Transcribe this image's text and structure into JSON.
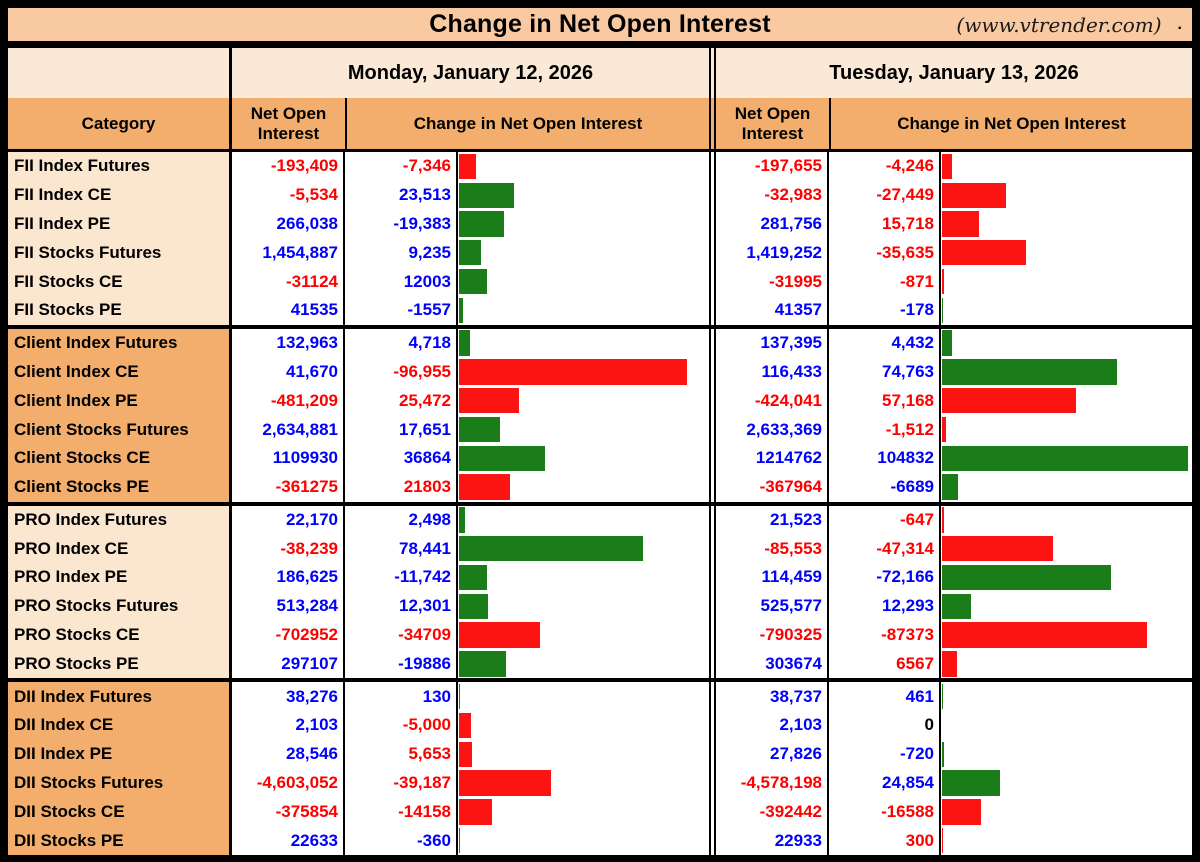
{
  "title": {
    "text": "Change in Net Open Interest",
    "source": "(www.vtrender.com)",
    "dot": "."
  },
  "days": [
    "Monday, January 12, 2026",
    "Tuesday, January 13, 2026"
  ],
  "columns": {
    "category": "Category",
    "noi": "Net Open Interest",
    "change": "Change in Net Open Interest"
  },
  "bar_scale": {
    "max_abs": 104832,
    "max_pct": 98
  },
  "colors": {
    "title_band": "#f9c9a1",
    "day_header_bg": "#fbe9d7",
    "column_header_bg": "#f3ae6d",
    "category_light": "#fbe6cf",
    "category_dark": "#f3ae6d",
    "cell_bg": "#ffffff",
    "positive_text": "#0000ff",
    "negative_text": "#ff0000",
    "zero_text": "#000000",
    "bar_green": "#1a7d1a",
    "bar_red": "#fb1412",
    "border": "#000000"
  },
  "groups": [
    {
      "name": "FII",
      "shade": "light",
      "rows": [
        {
          "category": "FII Index Futures",
          "cols": [
            {
              "noi": "-193,409",
              "noi_color": "red",
              "chg": "-7,346",
              "chg_color": "red",
              "chg_val": -7346,
              "bar": "red"
            },
            {
              "noi": "-197,655",
              "noi_color": "red",
              "chg": "-4,246",
              "chg_color": "red",
              "chg_val": -4246,
              "bar": "red"
            }
          ]
        },
        {
          "category": "FII Index CE",
          "cols": [
            {
              "noi": "-5,534",
              "noi_color": "red",
              "chg": "23,513",
              "chg_color": "blue",
              "chg_val": 23513,
              "bar": "green"
            },
            {
              "noi": "-32,983",
              "noi_color": "red",
              "chg": "-27,449",
              "chg_color": "red",
              "chg_val": -27449,
              "bar": "red"
            }
          ]
        },
        {
          "category": "FII Index PE",
          "cols": [
            {
              "noi": "266,038",
              "noi_color": "blue",
              "chg": "-19,383",
              "chg_color": "blue",
              "chg_val": -19383,
              "bar": "green"
            },
            {
              "noi": "281,756",
              "noi_color": "blue",
              "chg": "15,718",
              "chg_color": "red",
              "chg_val": 15718,
              "bar": "red"
            }
          ]
        },
        {
          "category": "FII Stocks Futures",
          "cols": [
            {
              "noi": "1,454,887",
              "noi_color": "blue",
              "chg": "9,235",
              "chg_color": "blue",
              "chg_val": 9235,
              "bar": "green"
            },
            {
              "noi": "1,419,252",
              "noi_color": "blue",
              "chg": "-35,635",
              "chg_color": "red",
              "chg_val": -35635,
              "bar": "red"
            }
          ]
        },
        {
          "category": "FII Stocks CE",
          "cols": [
            {
              "noi": "-31124",
              "noi_color": "red",
              "chg": "12003",
              "chg_color": "blue",
              "chg_val": 12003,
              "bar": "green"
            },
            {
              "noi": "-31995",
              "noi_color": "red",
              "chg": "-871",
              "chg_color": "red",
              "chg_val": -871,
              "bar": "red"
            }
          ]
        },
        {
          "category": "FII Stocks PE",
          "cols": [
            {
              "noi": "41535",
              "noi_color": "blue",
              "chg": "-1557",
              "chg_color": "blue",
              "chg_val": -1557,
              "bar": "green"
            },
            {
              "noi": "41357",
              "noi_color": "blue",
              "chg": "-178",
              "chg_color": "blue",
              "chg_val": -178,
              "bar": "green"
            }
          ]
        }
      ]
    },
    {
      "name": "Client",
      "shade": "dark",
      "rows": [
        {
          "category": "Client Index Futures",
          "cols": [
            {
              "noi": "132,963",
              "noi_color": "blue",
              "chg": "4,718",
              "chg_color": "blue",
              "chg_val": 4718,
              "bar": "green"
            },
            {
              "noi": "137,395",
              "noi_color": "blue",
              "chg": "4,432",
              "chg_color": "blue",
              "chg_val": 4432,
              "bar": "green"
            }
          ]
        },
        {
          "category": "Client Index CE",
          "cols": [
            {
              "noi": "41,670",
              "noi_color": "blue",
              "chg": "-96,955",
              "chg_color": "red",
              "chg_val": -96955,
              "bar": "red"
            },
            {
              "noi": "116,433",
              "noi_color": "blue",
              "chg": "74,763",
              "chg_color": "blue",
              "chg_val": 74763,
              "bar": "green"
            }
          ]
        },
        {
          "category": "Client Index PE",
          "cols": [
            {
              "noi": "-481,209",
              "noi_color": "red",
              "chg": "25,472",
              "chg_color": "red",
              "chg_val": 25472,
              "bar": "red"
            },
            {
              "noi": "-424,041",
              "noi_color": "red",
              "chg": "57,168",
              "chg_color": "red",
              "chg_val": 57168,
              "bar": "red"
            }
          ]
        },
        {
          "category": "Client Stocks Futures",
          "cols": [
            {
              "noi": "2,634,881",
              "noi_color": "blue",
              "chg": "17,651",
              "chg_color": "blue",
              "chg_val": 17651,
              "bar": "green"
            },
            {
              "noi": "2,633,369",
              "noi_color": "blue",
              "chg": "-1,512",
              "chg_color": "red",
              "chg_val": -1512,
              "bar": "red"
            }
          ]
        },
        {
          "category": "Client Stocks CE",
          "cols": [
            {
              "noi": "1109930",
              "noi_color": "blue",
              "chg": "36864",
              "chg_color": "blue",
              "chg_val": 36864,
              "bar": "green"
            },
            {
              "noi": "1214762",
              "noi_color": "blue",
              "chg": "104832",
              "chg_color": "blue",
              "chg_val": 104832,
              "bar": "green"
            }
          ]
        },
        {
          "category": "Client Stocks PE",
          "cols": [
            {
              "noi": "-361275",
              "noi_color": "red",
              "chg": "21803",
              "chg_color": "red",
              "chg_val": 21803,
              "bar": "red"
            },
            {
              "noi": "-367964",
              "noi_color": "red",
              "chg": "-6689",
              "chg_color": "blue",
              "chg_val": -6689,
              "bar": "green"
            }
          ]
        }
      ]
    },
    {
      "name": "PRO",
      "shade": "light",
      "rows": [
        {
          "category": "PRO Index Futures",
          "cols": [
            {
              "noi": "22,170",
              "noi_color": "blue",
              "chg": "2,498",
              "chg_color": "blue",
              "chg_val": 2498,
              "bar": "green"
            },
            {
              "noi": "21,523",
              "noi_color": "blue",
              "chg": "-647",
              "chg_color": "red",
              "chg_val": -647,
              "bar": "red"
            }
          ]
        },
        {
          "category": "PRO Index CE",
          "cols": [
            {
              "noi": "-38,239",
              "noi_color": "red",
              "chg": "78,441",
              "chg_color": "blue",
              "chg_val": 78441,
              "bar": "green"
            },
            {
              "noi": "-85,553",
              "noi_color": "red",
              "chg": "-47,314",
              "chg_color": "red",
              "chg_val": -47314,
              "bar": "red"
            }
          ]
        },
        {
          "category": "PRO Index PE",
          "cols": [
            {
              "noi": "186,625",
              "noi_color": "blue",
              "chg": "-11,742",
              "chg_color": "blue",
              "chg_val": -11742,
              "bar": "green"
            },
            {
              "noi": "114,459",
              "noi_color": "blue",
              "chg": "-72,166",
              "chg_color": "blue",
              "chg_val": -72166,
              "bar": "green"
            }
          ]
        },
        {
          "category": "PRO Stocks Futures",
          "cols": [
            {
              "noi": "513,284",
              "noi_color": "blue",
              "chg": "12,301",
              "chg_color": "blue",
              "chg_val": 12301,
              "bar": "green"
            },
            {
              "noi": "525,577",
              "noi_color": "blue",
              "chg": "12,293",
              "chg_color": "blue",
              "chg_val": 12293,
              "bar": "green"
            }
          ]
        },
        {
          "category": "PRO Stocks CE",
          "cols": [
            {
              "noi": "-702952",
              "noi_color": "red",
              "chg": "-34709",
              "chg_color": "red",
              "chg_val": -34709,
              "bar": "red"
            },
            {
              "noi": "-790325",
              "noi_color": "red",
              "chg": "-87373",
              "chg_color": "red",
              "chg_val": -87373,
              "bar": "red"
            }
          ]
        },
        {
          "category": "PRO Stocks PE",
          "cols": [
            {
              "noi": "297107",
              "noi_color": "blue",
              "chg": "-19886",
              "chg_color": "blue",
              "chg_val": -19886,
              "bar": "green"
            },
            {
              "noi": "303674",
              "noi_color": "blue",
              "chg": "6567",
              "chg_color": "red",
              "chg_val": 6567,
              "bar": "red"
            }
          ]
        }
      ]
    },
    {
      "name": "DII",
      "shade": "dark",
      "rows": [
        {
          "category": "DII Index Futures",
          "cols": [
            {
              "noi": "38,276",
              "noi_color": "blue",
              "chg": "130",
              "chg_color": "blue",
              "chg_val": 130,
              "bar": "green"
            },
            {
              "noi": "38,737",
              "noi_color": "blue",
              "chg": "461",
              "chg_color": "blue",
              "chg_val": 461,
              "bar": "green"
            }
          ]
        },
        {
          "category": "DII Index CE",
          "cols": [
            {
              "noi": "2,103",
              "noi_color": "blue",
              "chg": "-5,000",
              "chg_color": "red",
              "chg_val": -5000,
              "bar": "red"
            },
            {
              "noi": "2,103",
              "noi_color": "blue",
              "chg": "0",
              "chg_color": "black",
              "chg_val": 0,
              "bar": "none"
            }
          ]
        },
        {
          "category": "DII Index PE",
          "cols": [
            {
              "noi": "28,546",
              "noi_color": "blue",
              "chg": "5,653",
              "chg_color": "red",
              "chg_val": 5653,
              "bar": "red"
            },
            {
              "noi": "27,826",
              "noi_color": "blue",
              "chg": "-720",
              "chg_color": "blue",
              "chg_val": -720,
              "bar": "green"
            }
          ]
        },
        {
          "category": "DII Stocks Futures",
          "cols": [
            {
              "noi": "-4,603,052",
              "noi_color": "red",
              "chg": "-39,187",
              "chg_color": "red",
              "chg_val": -39187,
              "bar": "red"
            },
            {
              "noi": "-4,578,198",
              "noi_color": "red",
              "chg": "24,854",
              "chg_color": "blue",
              "chg_val": 24854,
              "bar": "green"
            }
          ]
        },
        {
          "category": "DII Stocks CE",
          "cols": [
            {
              "noi": "-375854",
              "noi_color": "red",
              "chg": "-14158",
              "chg_color": "red",
              "chg_val": -14158,
              "bar": "red"
            },
            {
              "noi": "-392442",
              "noi_color": "red",
              "chg": "-16588",
              "chg_color": "red",
              "chg_val": -16588,
              "bar": "red"
            }
          ]
        },
        {
          "category": "DII Stocks PE",
          "cols": [
            {
              "noi": "22633",
              "noi_color": "blue",
              "chg": "-360",
              "chg_color": "blue",
              "chg_val": -360,
              "bar": "green"
            },
            {
              "noi": "22933",
              "noi_color": "blue",
              "chg": "300",
              "chg_color": "red",
              "chg_val": 300,
              "bar": "red"
            }
          ]
        }
      ]
    }
  ],
  "chart_data": {
    "type": "bar",
    "orientation": "horizontal",
    "title": "Change in Net Open Interest",
    "categories": [
      "FII Index Futures",
      "FII Index CE",
      "FII Index PE",
      "FII Stocks Futures",
      "FII Stocks CE",
      "FII Stocks PE",
      "Client Index Futures",
      "Client Index CE",
      "Client Index PE",
      "Client Stocks Futures",
      "Client Stocks CE",
      "Client Stocks PE",
      "PRO Index Futures",
      "PRO Index CE",
      "PRO Index PE",
      "PRO Stocks Futures",
      "PRO Stocks CE",
      "PRO Stocks PE",
      "DII Index Futures",
      "DII Index CE",
      "DII Index PE",
      "DII Stocks Futures",
      "DII Stocks CE",
      "DII Stocks PE"
    ],
    "series": [
      {
        "name": "Net Open Interest (Mon Jan 12 2026)",
        "values": [
          -193409,
          -5534,
          266038,
          1454887,
          -31124,
          41535,
          132963,
          41670,
          -481209,
          2634881,
          1109930,
          -361275,
          22170,
          -38239,
          186625,
          513284,
          -702952,
          297107,
          38276,
          2103,
          28546,
          -4603052,
          -375854,
          22633
        ]
      },
      {
        "name": "Change in Net OI (Mon Jan 12 2026)",
        "values": [
          -7346,
          23513,
          -19383,
          9235,
          12003,
          -1557,
          4718,
          -96955,
          25472,
          17651,
          36864,
          21803,
          2498,
          78441,
          -11742,
          12301,
          -34709,
          -19886,
          130,
          -5000,
          5653,
          -39187,
          -14158,
          -360
        ]
      },
      {
        "name": "Net Open Interest (Tue Jan 13 2026)",
        "values": [
          -197655,
          -32983,
          281756,
          1419252,
          -31995,
          41357,
          137395,
          116433,
          -424041,
          2633369,
          1214762,
          -367964,
          21523,
          -85553,
          114459,
          525577,
          -790325,
          303674,
          38737,
          2103,
          27826,
          -4578198,
          -392442,
          22933
        ]
      },
      {
        "name": "Change in Net OI (Tue Jan 13 2026)",
        "values": [
          -4246,
          -27449,
          15718,
          -35635,
          -871,
          -178,
          4432,
          74763,
          57168,
          -1512,
          104832,
          -6689,
          -647,
          -47314,
          -72166,
          12293,
          -87373,
          6567,
          461,
          0,
          -720,
          24854,
          -16588,
          300
        ]
      }
    ],
    "bar_length_scale": "absolute value of change, max 104832 = full width",
    "bar_color_rule": "green = bullish change (futures/CE added or PE cut), red = bearish change",
    "legend_position": "none",
    "grid": false
  }
}
